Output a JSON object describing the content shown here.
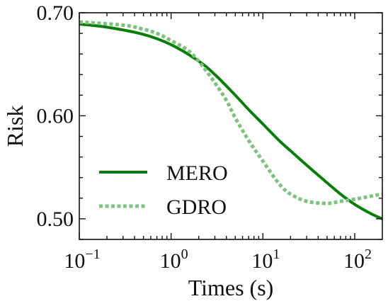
{
  "chart_data": {
    "type": "line",
    "xlabel": "Times (s)",
    "ylabel": "Risk",
    "xscale": "log",
    "xlim": [
      0.1,
      200
    ],
    "ylim": [
      0.48,
      0.7
    ],
    "grid": false,
    "legend_position": "bottom-left",
    "x_ticks": [
      {
        "value": 0.1,
        "base": "10",
        "exp": "−1"
      },
      {
        "value": 1,
        "base": "10",
        "exp": "0"
      },
      {
        "value": 10,
        "base": "10",
        "exp": "1"
      },
      {
        "value": 100,
        "base": "10",
        "exp": "2"
      }
    ],
    "y_ticks": [
      {
        "value": 0.5,
        "label": "0.50"
      },
      {
        "value": 0.6,
        "label": "0.60"
      },
      {
        "value": 0.7,
        "label": "0.70"
      }
    ],
    "series": [
      {
        "name": "MERO",
        "color": "#0a7d0a",
        "style": "solid",
        "x": [
          0.1,
          0.2,
          0.5,
          1,
          2,
          3,
          5,
          7,
          10,
          15,
          20,
          30,
          50,
          70,
          100,
          150,
          200
        ],
        "y": [
          0.689,
          0.686,
          0.679,
          0.669,
          0.653,
          0.64,
          0.62,
          0.606,
          0.592,
          0.576,
          0.566,
          0.552,
          0.535,
          0.524,
          0.514,
          0.505,
          0.5
        ]
      },
      {
        "name": "GDRO",
        "color": "#7fc27f",
        "style": "dotted",
        "x": [
          0.1,
          0.3,
          0.5,
          0.7,
          1,
          1.5,
          2,
          3,
          4,
          5,
          7,
          10,
          15,
          20,
          30,
          50,
          70,
          100,
          150,
          200
        ],
        "y": [
          0.691,
          0.688,
          0.684,
          0.68,
          0.673,
          0.664,
          0.653,
          0.632,
          0.615,
          0.598,
          0.576,
          0.556,
          0.534,
          0.524,
          0.517,
          0.515,
          0.517,
          0.519,
          0.522,
          0.524
        ]
      }
    ]
  }
}
